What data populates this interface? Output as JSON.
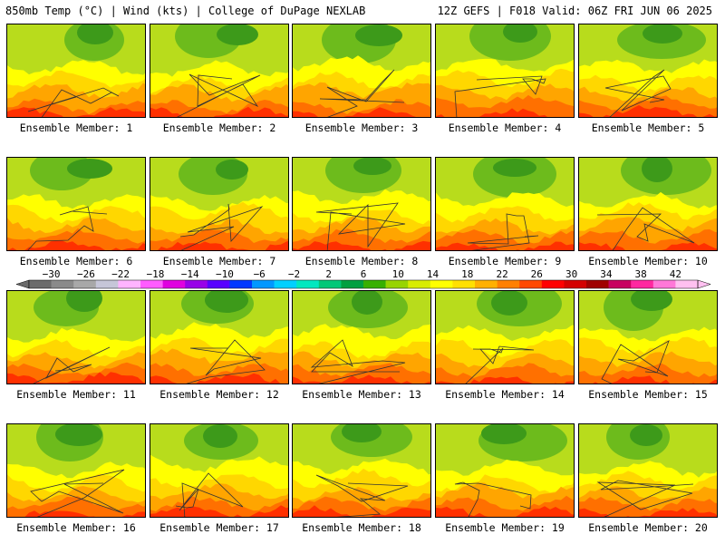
{
  "header": {
    "left": "850mb Temp (°C) | Wind (kts) | College of DuPage NEXLAB",
    "right": "12Z GEFS | F018 Valid: 06Z FRI JUN 06 2025"
  },
  "member_prefix": "Ensemble Member: ",
  "members": [
    "1",
    "2",
    "3",
    "4",
    "5",
    "6",
    "7",
    "8",
    "9",
    "10",
    "11",
    "12",
    "13",
    "14",
    "15",
    "16",
    "17",
    "18",
    "19",
    "20"
  ],
  "colorbar": {
    "labels": [
      "−30",
      "−26",
      "−22",
      "−18",
      "−14",
      "−10",
      "−6",
      "−2",
      "2",
      "6",
      "10",
      "14",
      "18",
      "22",
      "26",
      "30",
      "34",
      "38",
      "42"
    ],
    "values": [
      -30,
      -26,
      -22,
      -18,
      -14,
      -10,
      -6,
      -2,
      2,
      6,
      10,
      14,
      18,
      22,
      26,
      30,
      34,
      38,
      42
    ],
    "colors": [
      "#6b6b6b",
      "#8a8a8a",
      "#a8a8a8",
      "#c6c6d8",
      "#ffb4ff",
      "#ff5cff",
      "#e000e0",
      "#9800e8",
      "#5800ff",
      "#0038ff",
      "#0098ff",
      "#00d0ff",
      "#00e8c0",
      "#00c878",
      "#00a040",
      "#38b000",
      "#98d400",
      "#d8ec00",
      "#ffff00",
      "#ffe000",
      "#ffb000",
      "#ff8000",
      "#ff4800",
      "#ff0000",
      "#d40000",
      "#a00000",
      "#c80060",
      "#ff28a0",
      "#ff78d8",
      "#ffc0f0"
    ]
  },
  "map_colors": {
    "dark_green": "#3d9a1a",
    "green": "#6dbb1c",
    "yellow_green": "#b8dc1c",
    "yellow": "#ffff00",
    "gold": "#ffd700",
    "orange": "#ffa500",
    "dark_orange": "#ff7000",
    "red": "#ff3000"
  }
}
